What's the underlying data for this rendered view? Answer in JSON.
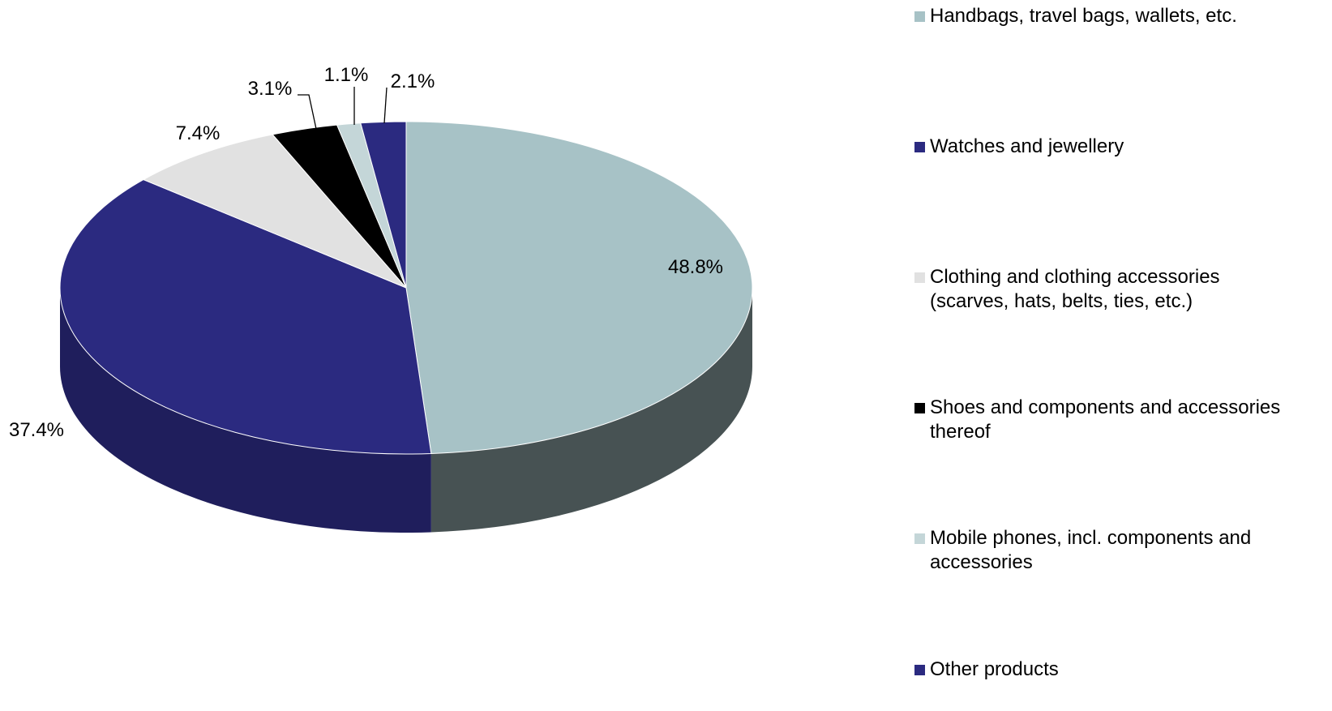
{
  "chart_data": {
    "type": "pie",
    "title": "",
    "unit": "%",
    "slices": [
      {
        "label": "Handbags, travel bags, wallets, etc.",
        "value": 48.8,
        "value_label": "48.8%",
        "color": "#a7c2c6",
        "side_color": "#475253"
      },
      {
        "label": "Watches and jewellery",
        "value": 37.4,
        "value_label": "37.4%",
        "color": "#2b2a80",
        "side_color": "#1f1e5c"
      },
      {
        "label": "Clothing and clothing accessories\n(scarves, hats, belts, ties, etc.)",
        "value": 7.4,
        "value_label": "7.4%",
        "color": "#e1e1e1",
        "side_color": "#a0a0a0"
      },
      {
        "label": "Shoes and components and accessories\nthereof",
        "value": 3.1,
        "value_label": "3.1%",
        "color": "#000000",
        "side_color": "#000000"
      },
      {
        "label": "Mobile phones, incl. components and\naccessories",
        "value": 1.1,
        "value_label": "1.1%",
        "color": "#c4d6d8",
        "side_color": "#7f8c8d"
      },
      {
        "label": "Other products",
        "value": 2.1,
        "value_label": "2.1%",
        "color": "#2b2a80",
        "side_color": "#1f1e5c"
      }
    ],
    "legend_position": "right",
    "style": "3d-pie"
  }
}
